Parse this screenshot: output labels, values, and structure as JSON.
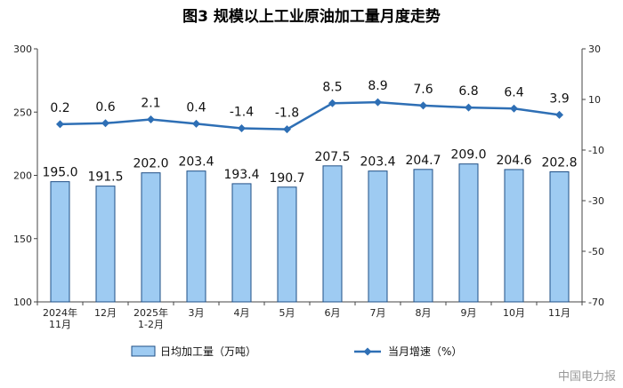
{
  "chart_data": {
    "type": "bar",
    "title": "图3  规模以上工业原油加工量月度走势",
    "categories": [
      [
        "2024年",
        "11月"
      ],
      [
        "12月"
      ],
      [
        "2025年",
        "1-2月"
      ],
      [
        "3月"
      ],
      [
        "4月"
      ],
      [
        "5月"
      ],
      [
        "6月"
      ],
      [
        "7月"
      ],
      [
        "8月"
      ],
      [
        "9月"
      ],
      [
        "10月"
      ],
      [
        "11月"
      ]
    ],
    "series": [
      {
        "name": "日均加工量（万吨）",
        "type": "bar",
        "axis": "left",
        "color": "#9ecbf2",
        "values": [
          195.0,
          191.5,
          202.0,
          203.4,
          193.4,
          190.7,
          207.5,
          203.4,
          204.7,
          209.0,
          204.6,
          202.8
        ],
        "labels": [
          "195.0",
          "191.5",
          "202.0",
          "203.4",
          "193.4",
          "190.7",
          "207.5",
          "203.4",
          "204.7",
          "209.0",
          "204.6",
          "202.8"
        ]
      },
      {
        "name": "当月增速（%）",
        "type": "line",
        "axis": "right",
        "color": "#2e6fb5",
        "values": [
          0.2,
          0.6,
          2.1,
          0.4,
          -1.4,
          -1.8,
          8.5,
          8.9,
          7.6,
          6.8,
          6.4,
          3.9
        ],
        "labels": [
          "0.2",
          "0.6",
          "2.1",
          "0.4",
          "-1.4",
          "-1.8",
          "8.5",
          "8.9",
          "7.6",
          "6.8",
          "6.4",
          "3.9"
        ]
      }
    ],
    "y_left": {
      "min": 100,
      "max": 300,
      "ticks": [
        "100",
        "150",
        "200",
        "250",
        "300"
      ]
    },
    "y_right": {
      "min": -70,
      "max": 30,
      "ticks": [
        "-70",
        "-50",
        "-30",
        "-10",
        "10",
        "30"
      ]
    },
    "legend_position": "bottom",
    "grid": false
  },
  "watermark": "中国电力报"
}
